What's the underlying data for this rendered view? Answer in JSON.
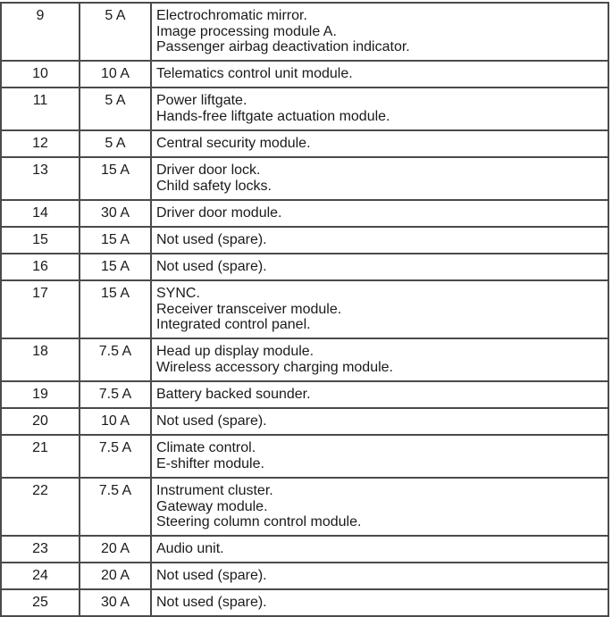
{
  "fuse_table": {
    "rows": [
      {
        "fuse": "9",
        "amps": "5 A",
        "circuits": [
          "Electrochromatic mirror.",
          "Image processing module A.",
          "Passenger airbag deactivation indicator."
        ]
      },
      {
        "fuse": "10",
        "amps": "10 A",
        "circuits": [
          "Telematics control unit module."
        ]
      },
      {
        "fuse": "11",
        "amps": "5 A",
        "circuits": [
          "Power liftgate.",
          "Hands-free liftgate actuation module."
        ]
      },
      {
        "fuse": "12",
        "amps": "5 A",
        "circuits": [
          "Central security module."
        ]
      },
      {
        "fuse": "13",
        "amps": "15 A",
        "circuits": [
          "Driver door lock.",
          "Child safety locks."
        ]
      },
      {
        "fuse": "14",
        "amps": "30 A",
        "circuits": [
          "Driver door module."
        ]
      },
      {
        "fuse": "15",
        "amps": "15 A",
        "circuits": [
          "Not used (spare)."
        ]
      },
      {
        "fuse": "16",
        "amps": "15 A",
        "circuits": [
          "Not used (spare)."
        ]
      },
      {
        "fuse": "17",
        "amps": "15 A",
        "circuits": [
          "SYNC.",
          "Receiver transceiver module.",
          "Integrated control panel."
        ]
      },
      {
        "fuse": "18",
        "amps": "7.5 A",
        "circuits": [
          "Head up display module.",
          "Wireless accessory charging module."
        ]
      },
      {
        "fuse": "19",
        "amps": "7.5 A",
        "circuits": [
          "Battery backed sounder."
        ]
      },
      {
        "fuse": "20",
        "amps": "10 A",
        "circuits": [
          "Not used (spare)."
        ]
      },
      {
        "fuse": "21",
        "amps": "7.5 A",
        "circuits": [
          "Climate control.",
          "E-shifter module."
        ]
      },
      {
        "fuse": "22",
        "amps": "7.5 A",
        "circuits": [
          "Instrument cluster.",
          "Gateway module.",
          "Steering column control module."
        ]
      },
      {
        "fuse": "23",
        "amps": "20 A",
        "circuits": [
          "Audio unit."
        ]
      },
      {
        "fuse": "24",
        "amps": "20 A",
        "circuits": [
          "Not used (spare)."
        ]
      },
      {
        "fuse": "25",
        "amps": "30 A",
        "circuits": [
          "Not used (spare)."
        ]
      }
    ]
  }
}
